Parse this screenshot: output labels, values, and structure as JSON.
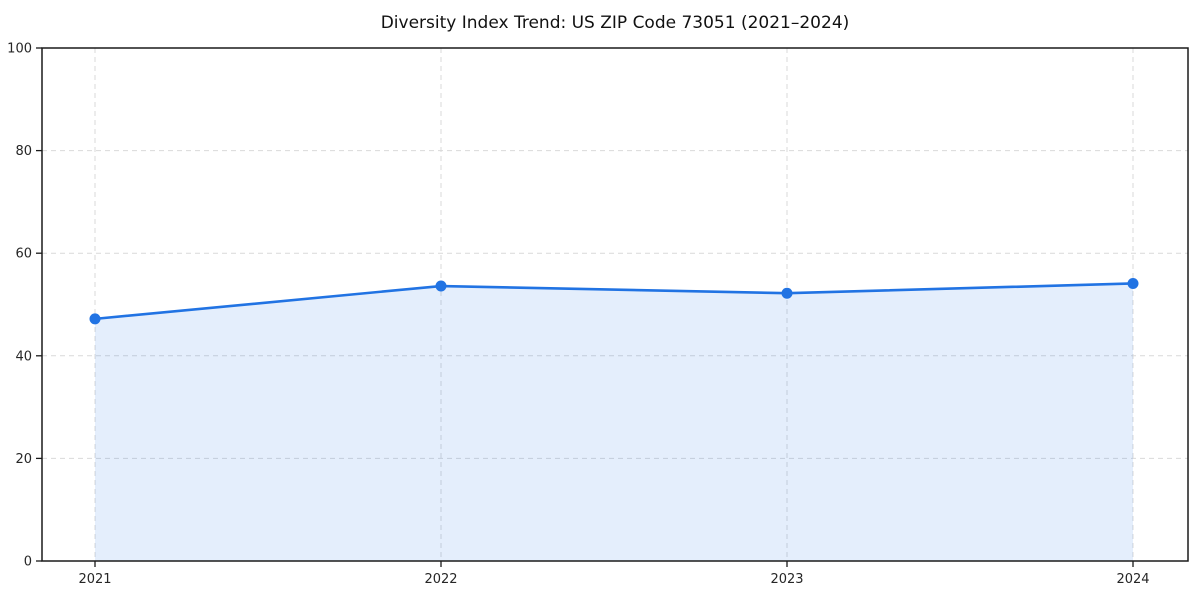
{
  "title": "Diversity Index Trend: US ZIP Code 73051 (2021–2024)",
  "chart_data": {
    "type": "area",
    "title": "Diversity Index Trend: US ZIP Code 73051 (2021–2024)",
    "x": [
      2021,
      2022,
      2023,
      2024
    ],
    "x_tick_labels": [
      "2021",
      "2022",
      "2023",
      "2024"
    ],
    "series": [
      {
        "name": "Diversity Index",
        "values": [
          47.2,
          53.6,
          52.2,
          54.1
        ]
      }
    ],
    "xlabel": "",
    "ylabel": "",
    "ylim": [
      0,
      100
    ],
    "y_ticks": [
      0,
      20,
      40,
      60,
      80,
      100
    ],
    "y_tick_labels": [
      "0",
      "20",
      "40",
      "60",
      "80",
      "100"
    ],
    "grid": true,
    "grid_style": "dashed",
    "legend": "none",
    "fill_to_zero": true,
    "colors": {
      "line": "#2173e3",
      "marker": "#2173e3",
      "fill": "rgba(33,115,227,0.12)",
      "grid": "#d9d9d9",
      "axis": "#1a1a1a",
      "tick_text": "#262626",
      "background": "#ffffff"
    }
  }
}
